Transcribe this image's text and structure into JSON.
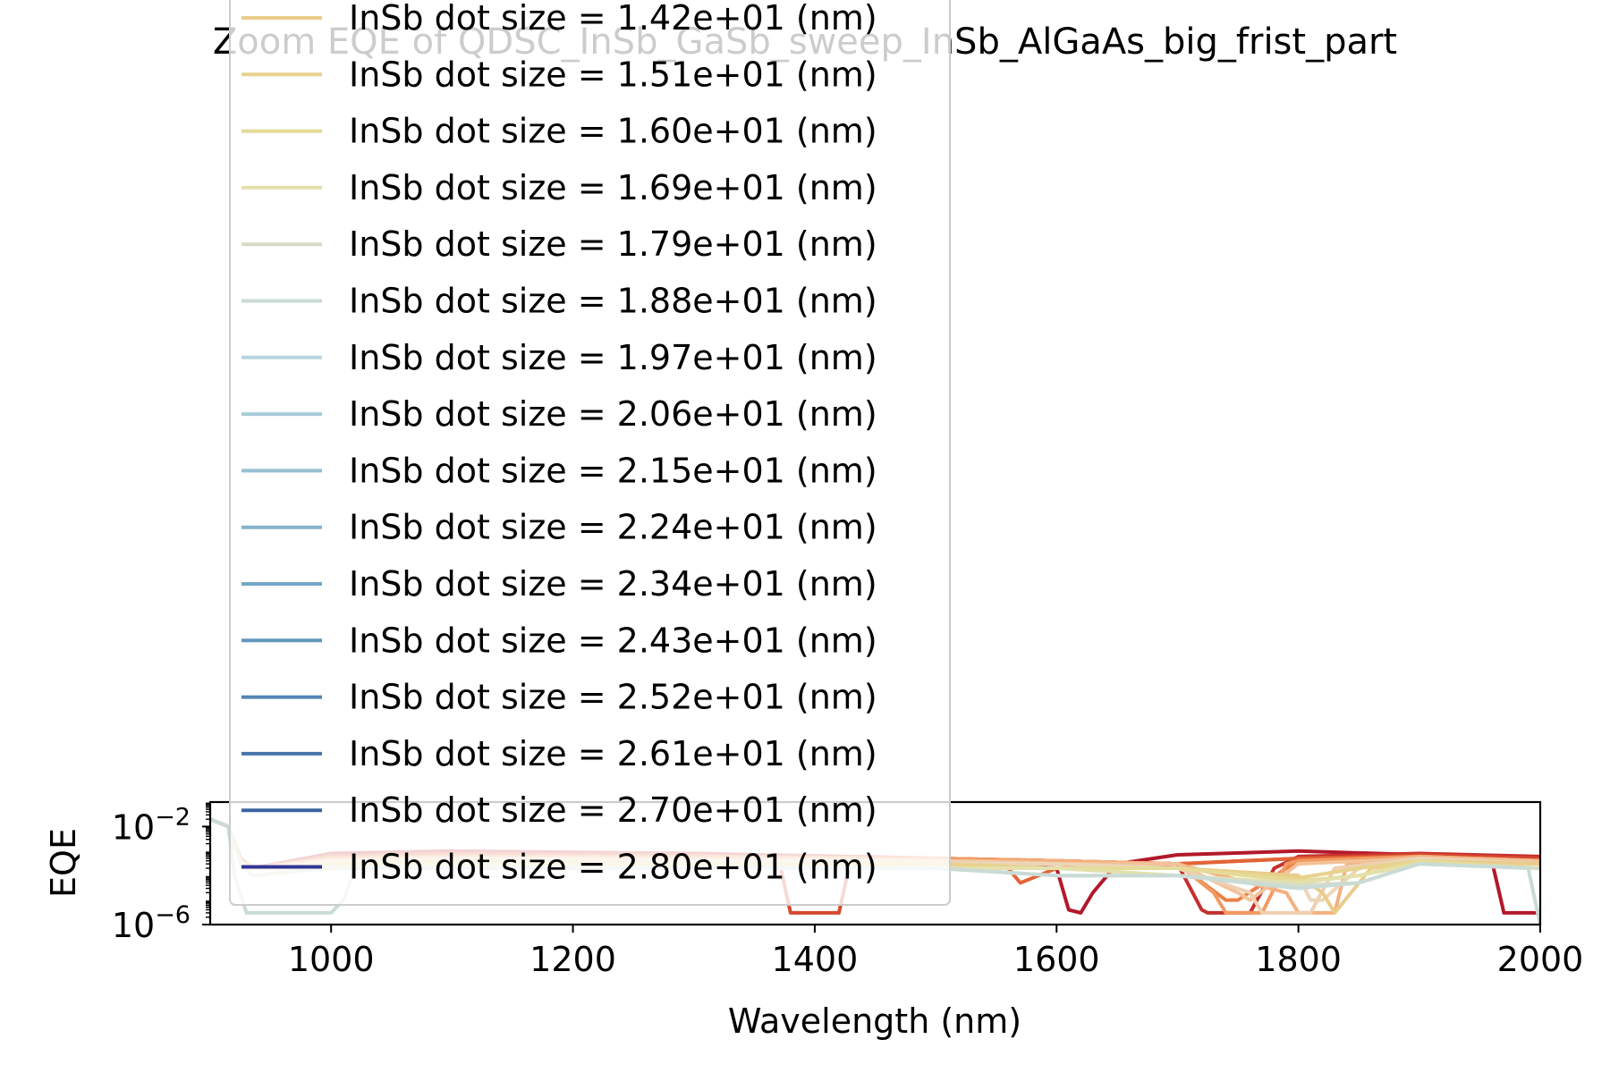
{
  "chart_data": {
    "type": "line",
    "title": "Zoom EQE of QDSC_InSb_GaSb_sweep_InSb_AlGaAs_big_frist_part",
    "xlabel": "Wavelength (nm)",
    "ylabel": "EQE",
    "xlim": [
      900,
      2000
    ],
    "ylim": [
      1e-06,
      0.1
    ],
    "yscale": "log",
    "grid": false,
    "legend_position": "upper-left",
    "x_ticks": [
      1000,
      1200,
      1400,
      1600,
      1800,
      2000
    ],
    "y_ticks": [
      {
        "value": 0.01,
        "base": "10",
        "exp": "−2"
      },
      {
        "value": 1e-06,
        "base": "10",
        "exp": "−6"
      }
    ],
    "colors": [
      "#b2182b",
      "#c42f2d",
      "#d6492f",
      "#e26437",
      "#ec8047",
      "#f29a62",
      "#f4b07e",
      "#f3c299",
      "#efcfb0",
      "#ebd6b8",
      "#e9cc8a",
      "#e7d28e",
      "#e5db98",
      "#e3e0ac",
      "#d6dcc6",
      "#c9dbd6",
      "#b8d4de",
      "#a8cbd8",
      "#97c1d2",
      "#86b3cc",
      "#74a6c6",
      "#6296bd",
      "#5286b5",
      "#4675ab",
      "#3a63a0",
      "#313695"
    ],
    "series": [
      {
        "name": "InSb dot size = 1.42e+01 (nm)",
        "x": [
          900,
          915,
          925,
          935,
          1000,
          1100,
          1300,
          1500,
          1600,
          1610,
          1620,
          1630,
          1650,
          1700,
          1800,
          1900,
          1960,
          1970,
          2000
        ],
        "y": [
          0.02,
          0.01,
          0.0005,
          0.0002,
          0.0008,
          0.001,
          0.0008,
          0.0005,
          0.0002,
          4e-06,
          3e-06,
          2e-05,
          0.0003,
          0.0007,
          0.001,
          0.0007,
          0.0004,
          3e-06,
          3e-06
        ]
      },
      {
        "name": "InSb dot size = 1.51e+01 (nm)",
        "x": [
          900,
          915,
          925,
          935,
          1000,
          1100,
          1300,
          1500,
          1600,
          1700,
          1720,
          1725,
          1760,
          1780,
          1800,
          1900,
          2000
        ],
        "y": [
          0.02,
          0.01,
          0.0005,
          0.0002,
          0.0007,
          0.0009,
          0.0008,
          0.0005,
          0.0004,
          0.0003,
          4e-06,
          3e-06,
          3e-06,
          0.0002,
          0.0006,
          0.0008,
          0.0006
        ]
      },
      {
        "name": "InSb dot size = 1.60e+01 (nm)",
        "x": [
          900,
          915,
          925,
          935,
          1000,
          1100,
          1300,
          1370,
          1380,
          1420,
          1430,
          1500,
          1600,
          1700,
          1800,
          1900,
          2000
        ],
        "y": [
          0.02,
          0.01,
          0.0005,
          0.0002,
          0.0006,
          0.0008,
          0.0007,
          0.0005,
          3e-06,
          3e-06,
          0.0005,
          0.0005,
          0.0004,
          0.0003,
          0.0005,
          0.0007,
          0.0005
        ]
      },
      {
        "name": "InSb dot size = 1.69e+01 (nm)",
        "x": [
          900,
          915,
          925,
          935,
          1000,
          1100,
          1300,
          1500,
          1560,
          1570,
          1600,
          1700,
          1800,
          1900,
          2000
        ],
        "y": [
          0.02,
          0.01,
          0.0004,
          0.0002,
          0.0006,
          0.0007,
          0.0006,
          0.0005,
          0.0002,
          5e-05,
          0.0002,
          0.0003,
          0.0005,
          0.0006,
          0.0004
        ]
      },
      {
        "name": "InSb dot size = 1.79e+01 (nm)",
        "x": [
          900,
          915,
          925,
          935,
          1000,
          1100,
          1300,
          1500,
          1600,
          1700,
          1740,
          1750,
          1790,
          1800,
          1900,
          2000
        ],
        "y": [
          0.02,
          0.01,
          0.0004,
          0.0002,
          0.0005,
          0.0006,
          0.0006,
          0.0005,
          0.0004,
          0.0003,
          1e-05,
          1e-05,
          0.0002,
          0.0004,
          0.0006,
          0.0004
        ]
      },
      {
        "name": "InSb dot size = 1.88e+01 (nm)",
        "x": [
          900,
          915,
          925,
          935,
          1000,
          1100,
          1300,
          1500,
          1600,
          1700,
          1730,
          1740,
          1770,
          1790,
          1800,
          1900,
          2000
        ],
        "y": [
          0.02,
          0.01,
          0.0004,
          0.0002,
          0.0005,
          0.0006,
          0.0005,
          0.0005,
          0.0004,
          0.0003,
          2e-05,
          3e-06,
          3e-06,
          0.0003,
          0.0004,
          0.0006,
          0.0004
        ]
      },
      {
        "name": "InSb dot size = 1.97e+01 (nm)",
        "x": [
          900,
          915,
          925,
          935,
          1000,
          1100,
          1300,
          1500,
          1600,
          1700,
          1790,
          1800,
          1830,
          1840,
          1900,
          2000
        ],
        "y": [
          0.02,
          0.01,
          0.0004,
          0.0002,
          0.0004,
          0.0005,
          0.0005,
          0.0004,
          0.0004,
          0.0003,
          2e-05,
          3e-06,
          3e-06,
          0.0003,
          0.0006,
          0.0004
        ]
      },
      {
        "name": "InSb dot size = 2.06e+01 (nm)",
        "x": [
          900,
          915,
          925,
          935,
          1000,
          1100,
          1300,
          1500,
          1600,
          1700,
          1750,
          1760,
          1800,
          1900,
          2000
        ],
        "y": [
          0.02,
          0.01,
          0.0004,
          0.0002,
          0.0004,
          0.0005,
          0.0004,
          0.0004,
          0.0003,
          0.0003,
          2e-05,
          1e-05,
          0.0003,
          0.0005,
          0.0004
        ]
      },
      {
        "name": "InSb dot size = 2.15e+01 (nm)",
        "x": [
          900,
          915,
          925,
          935,
          1000,
          1100,
          1300,
          1500,
          1600,
          1700,
          1760,
          1770,
          1810,
          1830,
          1900,
          2000
        ],
        "y": [
          0.02,
          0.01,
          0.0004,
          0.0002,
          0.0004,
          0.0005,
          0.0004,
          0.0004,
          0.0003,
          0.0002,
          2e-05,
          3e-06,
          3e-06,
          0.0002,
          0.0005,
          0.0003
        ]
      },
      {
        "name": "InSb dot size = 2.24e+01 (nm)",
        "x": [
          900,
          915,
          925,
          935,
          1000,
          1100,
          1300,
          1500,
          1600,
          1700,
          1800,
          1810,
          1820,
          1850,
          1900,
          2000
        ],
        "y": [
          0.02,
          0.01,
          0.0004,
          0.0002,
          0.0003,
          0.0004,
          0.0004,
          0.0003,
          0.0003,
          0.0002,
          0.0001,
          1e-05,
          1e-05,
          0.0002,
          0.0005,
          0.0003
        ]
      },
      {
        "name": "InSb dot size = 2.34e+01 (nm)",
        "x": [
          900,
          915,
          925,
          935,
          1000,
          1100,
          1300,
          1500,
          1600,
          1700,
          1800,
          1820,
          1830,
          1860,
          1900,
          2000
        ],
        "y": [
          0.02,
          0.01,
          0.0004,
          0.0002,
          0.0003,
          0.0004,
          0.0003,
          0.0003,
          0.0002,
          0.0002,
          0.0001,
          2e-05,
          3e-06,
          0.0002,
          0.0004,
          0.0003
        ]
      },
      {
        "name": "InSb dot size = 2.43e+01 (nm)",
        "x": [
          900,
          915,
          925,
          935,
          1000,
          1100,
          1300,
          1500,
          1600,
          1700,
          1800,
          1850,
          1900,
          2000
        ],
        "y": [
          0.02,
          0.01,
          0.0003,
          0.0002,
          0.0003,
          0.0003,
          0.0003,
          0.0003,
          0.0002,
          0.0002,
          8e-05,
          0.0002,
          0.0004,
          0.0002
        ]
      },
      {
        "name": "InSb dot size = 2.52e+01 (nm)",
        "x": [
          900,
          915,
          925,
          935,
          1000,
          1100,
          1300,
          1500,
          1600,
          1700,
          1800,
          1850,
          1900,
          2000
        ],
        "y": [
          0.02,
          0.01,
          0.0003,
          0.0002,
          0.0002,
          0.0003,
          0.0003,
          0.0002,
          0.0002,
          0.0002,
          6e-05,
          0.0001,
          0.0004,
          0.0002
        ]
      },
      {
        "name": "InSb dot size = 2.61e+01 (nm)",
        "x": [
          900,
          915,
          925,
          935,
          1000,
          1100,
          1300,
          1500,
          1600,
          1700,
          1800,
          1850,
          1900,
          2000
        ],
        "y": [
          0.02,
          0.01,
          0.0003,
          0.0001,
          0.0002,
          0.0003,
          0.0002,
          0.0002,
          0.0002,
          0.0001,
          5e-05,
          0.0001,
          0.0003,
          0.0002
        ]
      },
      {
        "name": "InSb dot size = 2.70e+01 (nm)",
        "x": [
          900,
          915,
          925,
          935,
          1000,
          1100,
          1300,
          1500,
          1600,
          1700,
          1800,
          1850,
          1900,
          2000
        ],
        "y": [
          0.02,
          0.01,
          0.0003,
          0.0001,
          0.0002,
          0.0002,
          0.0002,
          0.0002,
          0.0001,
          0.0001,
          4e-05,
          5e-05,
          0.0003,
          0.0002
        ]
      },
      {
        "name": "InSb dot size = 2.80e+01 (nm)",
        "x": [
          900,
          915,
          920,
          930,
          1000,
          1010,
          1020,
          1100,
          1300,
          1500,
          1600,
          1700,
          1800,
          1850,
          1900,
          1990,
          2000
        ],
        "y": [
          0.02,
          0.01,
          0.0001,
          3e-06,
          3e-06,
          1e-05,
          0.0002,
          0.0002,
          0.0002,
          0.0002,
          0.0001,
          0.0001,
          3e-05,
          5e-05,
          0.0003,
          0.0002,
          1e-06
        ]
      }
    ]
  }
}
